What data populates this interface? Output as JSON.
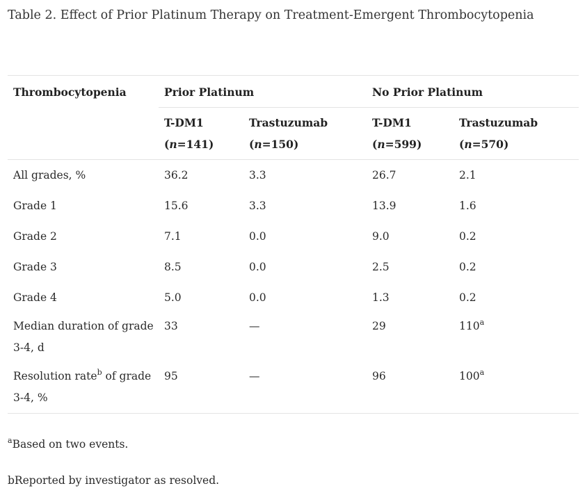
{
  "caption": "Table 2. Effect of Prior Platinum Therapy on Treatment-Emergent Thrombocytopenia",
  "header": {
    "row_label": "Thrombocytopenia",
    "groups": [
      "Prior Platinum",
      "No Prior Platinum"
    ],
    "columns": [
      {
        "name": "T-DM1",
        "n_prefix": "(",
        "n_var": "n",
        "n_value": "=141)"
      },
      {
        "name": "Trastuzumab",
        "n_prefix": "(",
        "n_var": "n",
        "n_value": "=150)"
      },
      {
        "name": "T-DM1",
        "n_prefix": "(",
        "n_var": "n",
        "n_value": "=599)"
      },
      {
        "name": "Trastuzumab",
        "n_prefix": "(",
        "n_var": "n",
        "n_value": "=570)"
      }
    ]
  },
  "rows": [
    {
      "label": "All grades, %",
      "values": [
        "36.2",
        "3.3",
        "26.7",
        "2.1"
      ]
    },
    {
      "label": "Grade 1",
      "values": [
        "15.6",
        "3.3",
        "13.9",
        "1.6"
      ]
    },
    {
      "label": "Grade 2",
      "values": [
        "7.1",
        "0.0",
        "9.0",
        "0.2"
      ]
    },
    {
      "label": "Grade 3",
      "values": [
        "8.5",
        "0.0",
        "2.5",
        "0.2"
      ]
    },
    {
      "label": "Grade 4",
      "values": [
        "5.0",
        "0.0",
        "1.3",
        "0.2"
      ]
    }
  ],
  "median_row": {
    "label": "Median duration of grade 3-4, d",
    "values": [
      "33",
      "—",
      "29",
      "110"
    ],
    "last_sup": "a"
  },
  "resolution_row": {
    "label_start": "Resolution rate",
    "label_sup": "b",
    "label_end": " of grade 3-4, %",
    "values": [
      "95",
      "—",
      "96",
      "100"
    ],
    "last_sup": "a"
  },
  "footnotes": {
    "a_mark": "a",
    "a_text": "Based on two events.",
    "b_text": "bReported by investigator as resolved."
  }
}
